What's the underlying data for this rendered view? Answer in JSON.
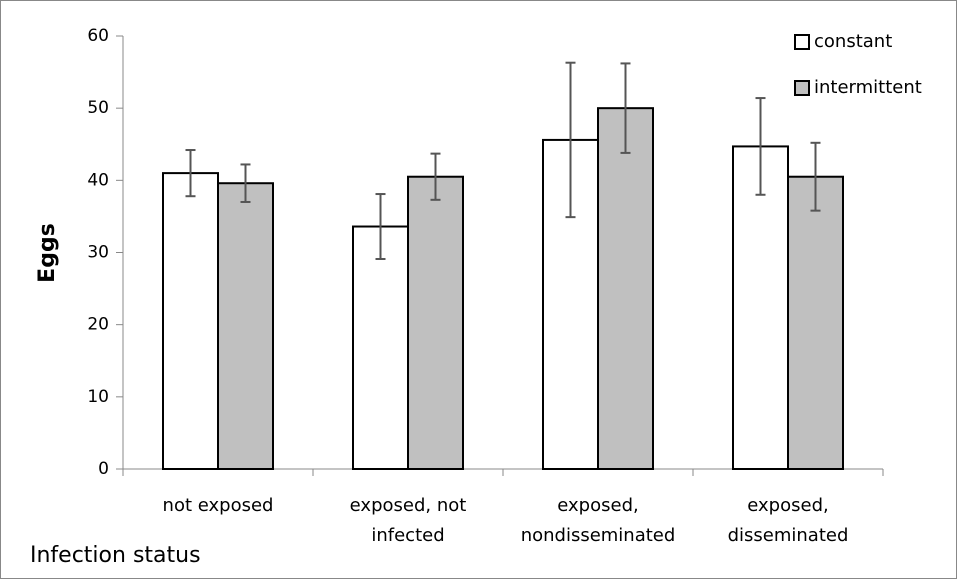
{
  "chart_data": {
    "type": "bar",
    "x_label": "Infection status",
    "y_label": "Eggs",
    "categories": [
      "not exposed",
      "exposed, not infected",
      "exposed, nondisseminated",
      "exposed, disseminated"
    ],
    "series": [
      {
        "name": "constant",
        "color": "#ffffff",
        "values": [
          41,
          33.6,
          45.6,
          44.7
        ],
        "errors": [
          3.2,
          4.5,
          10.7,
          6.7
        ]
      },
      {
        "name": "intermittent",
        "color": "#c0c0c0",
        "values": [
          39.6,
          40.5,
          50,
          40.5
        ],
        "errors": [
          2.6,
          3.2,
          6.2,
          4.7
        ]
      }
    ],
    "ylim": [
      0,
      60
    ],
    "yticks": [
      0,
      10,
      20,
      30,
      40,
      50,
      60
    ],
    "legend": "top-right"
  }
}
